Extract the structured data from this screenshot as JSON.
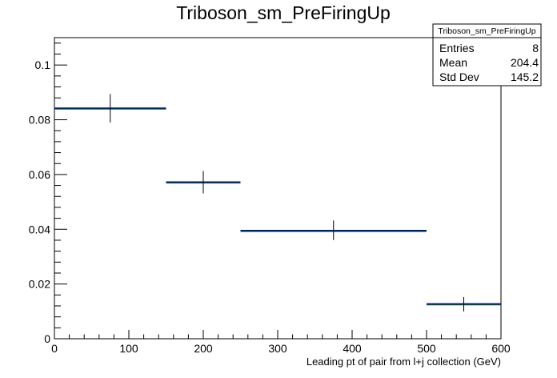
{
  "chart_data": {
    "type": "step-histogram",
    "title": "Triboson_sm_PreFiringUp",
    "xlabel": "Leading pt of pair from l+j collection (GeV)",
    "ylabel": "",
    "xlim": [
      0,
      600
    ],
    "ylim": [
      0,
      0.11
    ],
    "x_ticks": [
      0,
      100,
      200,
      300,
      400,
      500,
      600
    ],
    "y_ticks": [
      0,
      0.02,
      0.04,
      0.06,
      0.08,
      0.1
    ],
    "x_tick_labels": [
      "0",
      "100",
      "200",
      "300",
      "400",
      "500",
      "600"
    ],
    "y_tick_labels": [
      "0",
      "0.02",
      "0.04",
      "0.06",
      "0.08",
      "0.1"
    ],
    "grid": false,
    "bins": [
      {
        "x_low": 0,
        "x_high": 150,
        "x_center": 75,
        "value": 0.0842,
        "err_low": 0.079,
        "err_high": 0.0894
      },
      {
        "x_low": 150,
        "x_high": 250,
        "x_center": 200,
        "value": 0.0572,
        "err_low": 0.0531,
        "err_high": 0.0613
      },
      {
        "x_low": 250,
        "x_high": 500,
        "x_center": 375,
        "value": 0.0395,
        "err_low": 0.0361,
        "err_high": 0.0432
      },
      {
        "x_low": 500,
        "x_high": 600,
        "x_center": 550,
        "value": 0.0127,
        "err_low": 0.01,
        "err_high": 0.0152
      }
    ],
    "series_colors": {
      "fill_line": "#0000cc",
      "outline": "#006600",
      "error_bar": "#000000"
    },
    "stats_box": {
      "title": "Triboson_sm_PreFiringUp",
      "rows": [
        {
          "label": "Entries",
          "value": "8"
        },
        {
          "label": "Mean",
          "value": "204.4"
        },
        {
          "label": "Std Dev",
          "value": "145.2"
        }
      ],
      "placement": "top-right"
    }
  }
}
